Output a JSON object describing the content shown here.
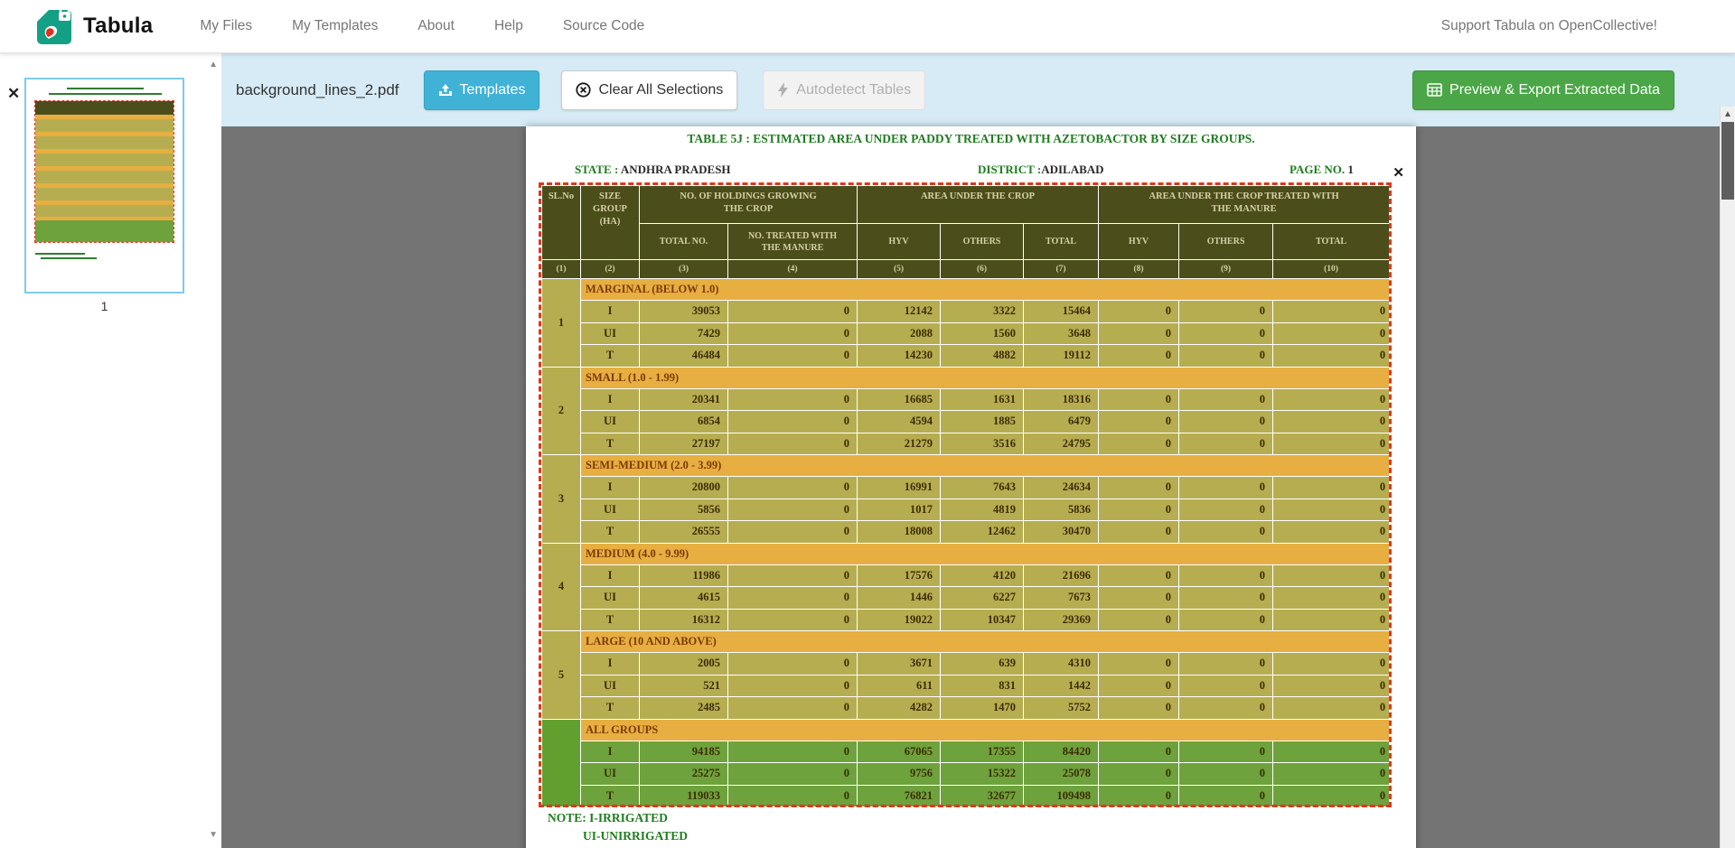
{
  "navbar": {
    "brand": "Tabula",
    "items": [
      {
        "label": "My Files"
      },
      {
        "label": "My Templates"
      },
      {
        "label": "About"
      },
      {
        "label": "Help"
      },
      {
        "label": "Source Code"
      }
    ],
    "support_link": "Support Tabula on OpenCollective!"
  },
  "toolbar": {
    "filename": "background_lines_2.pdf",
    "templates_button": "Templates",
    "clear_button": "Clear All Selections",
    "autodetect_button": "Autodetect Tables",
    "export_button": "Preview & Export Extracted Data"
  },
  "sidebar": {
    "remove_file": "✕",
    "page_number": "1"
  },
  "pdf": {
    "title": "TABLE 5J : ESTIMATED AREA UNDER PADDY  TREATED WITH AZETOBACTOR BY SIZE GROUPS.",
    "state_label": "STATE :",
    "state_value": "ANDHRA PRADESH",
    "district_label": "DISTRICT :",
    "district_value": "ADILABAD",
    "page_label": "PAGE NO.",
    "page_value": "1",
    "selection_close": "✕",
    "note_line1": "NOTE: I-IRRIGATED",
    "note_line2": "UI-UNIRRIGATED"
  },
  "table": {
    "header": {
      "slno": "SL.No",
      "size_group": "SIZE\nGROUP\n(HA)",
      "holdings": "NO. OF HOLDINGS GROWING\nTHE CROP",
      "area": "AREA UNDER THE CROP",
      "area_treated": "AREA UNDER THE CROP TREATED WITH\nTHE  MANURE",
      "sub": [
        "TOTAL NO.",
        "NO. TREATED WITH\nTHE  MANURE",
        "HYV",
        "OTHERS",
        "TOTAL",
        "HYV",
        "OTHERS",
        "TOTAL"
      ],
      "col_numbers": [
        "(1)",
        "(2)",
        "(3)",
        "(4)",
        "(5)",
        "(6)",
        "(7)",
        "(8)",
        "(9)",
        "(10)"
      ]
    },
    "groups": [
      {
        "no": "1",
        "name": "MARGINAL (BELOW 1.0)",
        "all_groups": false,
        "rows": [
          [
            "I",
            "39053",
            "0",
            "12142",
            "3322",
            "15464",
            "0",
            "0",
            "0"
          ],
          [
            "UI",
            "7429",
            "0",
            "2088",
            "1560",
            "3648",
            "0",
            "0",
            "0"
          ],
          [
            "T",
            "46484",
            "0",
            "14230",
            "4882",
            "19112",
            "0",
            "0",
            "0"
          ]
        ]
      },
      {
        "no": "2",
        "name": "SMALL (1.0 - 1.99)",
        "all_groups": false,
        "rows": [
          [
            "I",
            "20341",
            "0",
            "16685",
            "1631",
            "18316",
            "0",
            "0",
            "0"
          ],
          [
            "UI",
            "6854",
            "0",
            "4594",
            "1885",
            "6479",
            "0",
            "0",
            "0"
          ],
          [
            "T",
            "27197",
            "0",
            "21279",
            "3516",
            "24795",
            "0",
            "0",
            "0"
          ]
        ]
      },
      {
        "no": "3",
        "name": "SEMI-MEDIUM (2.0 - 3.99)",
        "all_groups": false,
        "rows": [
          [
            "I",
            "20800",
            "0",
            "16991",
            "7643",
            "24634",
            "0",
            "0",
            "0"
          ],
          [
            "UI",
            "5856",
            "0",
            "1017",
            "4819",
            "5836",
            "0",
            "0",
            "0"
          ],
          [
            "T",
            "26555",
            "0",
            "18008",
            "12462",
            "30470",
            "0",
            "0",
            "0"
          ]
        ]
      },
      {
        "no": "4",
        "name": "MEDIUM (4.0 - 9.99)",
        "all_groups": false,
        "rows": [
          [
            "I",
            "11986",
            "0",
            "17576",
            "4120",
            "21696",
            "0",
            "0",
            "0"
          ],
          [
            "UI",
            "4615",
            "0",
            "1446",
            "6227",
            "7673",
            "0",
            "0",
            "0"
          ],
          [
            "T",
            "16312",
            "0",
            "19022",
            "10347",
            "29369",
            "0",
            "0",
            "0"
          ]
        ]
      },
      {
        "no": "5",
        "name": "LARGE (10 AND ABOVE)",
        "all_groups": false,
        "rows": [
          [
            "I",
            "2005",
            "0",
            "3671",
            "639",
            "4310",
            "0",
            "0",
            "0"
          ],
          [
            "UI",
            "521",
            "0",
            "611",
            "831",
            "1442",
            "0",
            "0",
            "0"
          ],
          [
            "T",
            "2485",
            "0",
            "4282",
            "1470",
            "5752",
            "0",
            "0",
            "0"
          ]
        ]
      },
      {
        "no": "",
        "name": "ALL GROUPS",
        "all_groups": true,
        "rows": [
          [
            "I",
            "94185",
            "0",
            "67065",
            "17355",
            "84420",
            "0",
            "0",
            "0"
          ],
          [
            "UI",
            "25275",
            "0",
            "9756",
            "15322",
            "25078",
            "0",
            "0",
            "0"
          ],
          [
            "T",
            "119033",
            "0",
            "76821",
            "32677",
            "109498",
            "0",
            "0",
            "0"
          ]
        ]
      }
    ]
  },
  "colors": {
    "accent_blue": "#3fb2d6",
    "accent_green": "#4aa647",
    "toolbar_bg": "#d6ebf5",
    "header_olive": "#4b4e1b",
    "band_orange": "#e7ae41",
    "row_yellow": "#b6ad51",
    "row_green": "#6ea23c",
    "selection_red": "#e0361f",
    "pdf_text_green": "#1f7d1f"
  }
}
